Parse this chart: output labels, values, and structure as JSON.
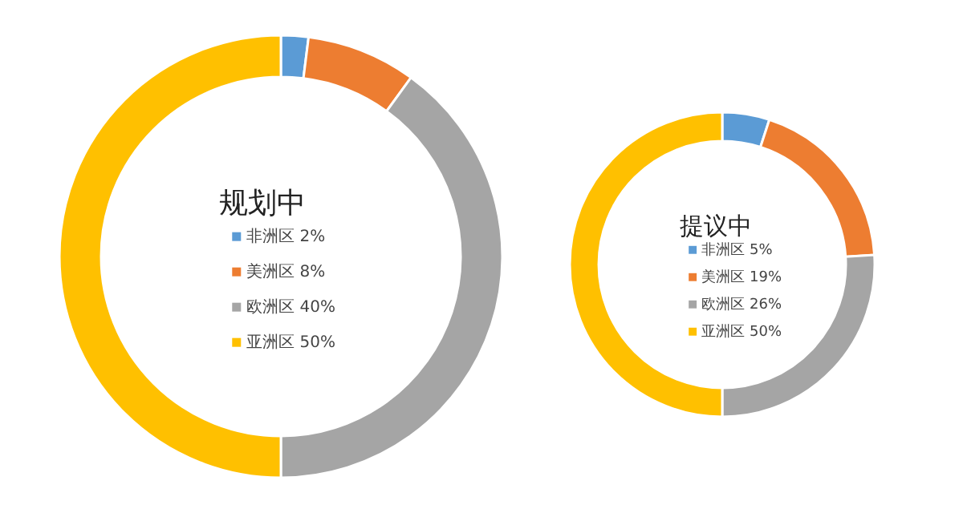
{
  "chart_data": [
    {
      "type": "donut",
      "title": "规划中",
      "categories": [
        "非洲区",
        "美洲区",
        "欧洲区",
        "亚洲区"
      ],
      "values": [
        2,
        8,
        40,
        50
      ],
      "value_labels": [
        "2%",
        "8%",
        "40%",
        "50%"
      ],
      "colors": [
        "#5b9bd5",
        "#ed7d31",
        "#a5a5a5",
        "#ffc000"
      ],
      "legend": "center"
    },
    {
      "type": "donut",
      "title": "提议中",
      "categories": [
        "非洲区",
        "美洲区",
        "欧洲区",
        "亚洲区"
      ],
      "values": [
        5,
        19,
        26,
        50
      ],
      "value_labels": [
        "5%",
        "19%",
        "26%",
        "50%"
      ],
      "colors": [
        "#5b9bd5",
        "#ed7d31",
        "#a5a5a5",
        "#ffc000"
      ],
      "legend": "center"
    }
  ]
}
